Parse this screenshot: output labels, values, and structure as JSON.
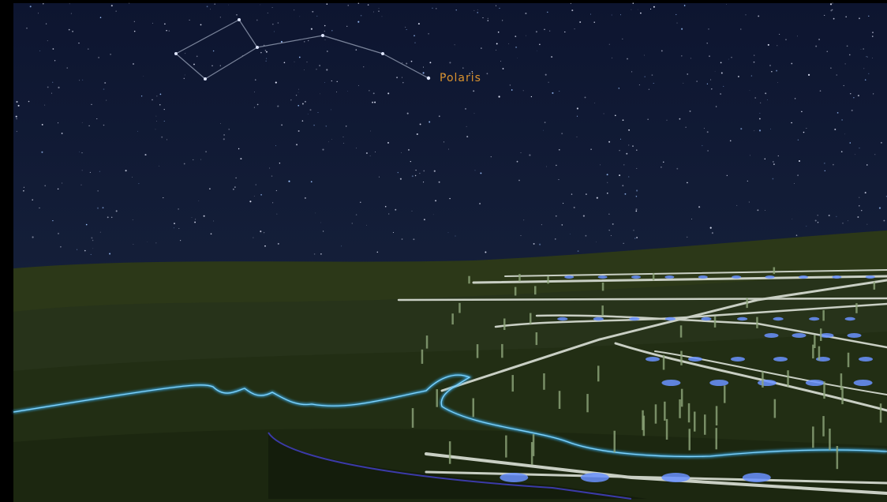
{
  "star_label": "Polaris"
}
